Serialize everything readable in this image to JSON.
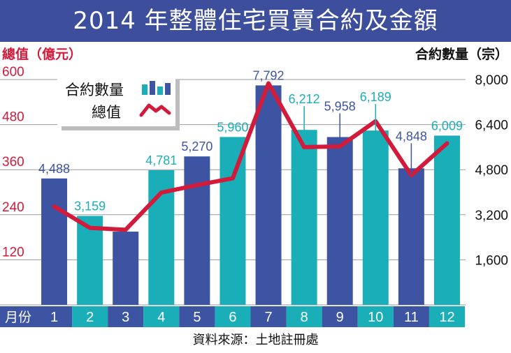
{
  "title": "2014 年整體住宅買賣合約及金額",
  "source": "資料來源：土地註冊處",
  "month_axis_label": "月份",
  "colors": {
    "title_bg": "#3d4f9c",
    "bar_dark": "#3d54a3",
    "bar_teal": "#1aaeb8",
    "line": "#d21a3a",
    "left_axis_text": "#d21a3a",
    "label_dark": "#3d54a3",
    "label_teal": "#1aaeb8",
    "month_band_dark": "#3d54a3",
    "month_band_teal": "#1aaeb8"
  },
  "chart_data": {
    "type": "bar",
    "categories": [
      "1",
      "2",
      "3",
      "4",
      "5",
      "6",
      "7",
      "8",
      "9",
      "10",
      "11",
      "12"
    ],
    "series": [
      {
        "name": "合約數量",
        "type": "bar",
        "axis": "right",
        "values": [
          4488,
          3159,
          2600,
          4781,
          5270,
          5960,
          7792,
          6212,
          5958,
          6189,
          4848,
          6009
        ],
        "labels": [
          "4,488",
          "3,159",
          "",
          "4,781",
          "5,270",
          "5,960",
          "7,792",
          "6,212",
          "5,958",
          "6,189",
          "4,848",
          "6,009"
        ],
        "colors": [
          "dark",
          "teal",
          "dark",
          "teal",
          "dark",
          "teal",
          "dark",
          "teal",
          "dark",
          "teal",
          "dark",
          "teal"
        ]
      },
      {
        "name": "總值",
        "type": "line",
        "axis": "left",
        "values": [
          262,
          205,
          200,
          299,
          319,
          337,
          590,
          420,
          422,
          489,
          345,
          430
        ]
      }
    ],
    "y_left": {
      "label": "總值（億元）",
      "ticks": [
        "600",
        "480",
        "360",
        "240",
        "120"
      ],
      "range": [
        0,
        600
      ]
    },
    "y_right": {
      "label": "合約數量（宗）",
      "ticks": [
        "8,000",
        "6,400",
        "4,800",
        "3,200",
        "1,600"
      ],
      "range": [
        0,
        8000
      ]
    },
    "legend": {
      "position": "top-left",
      "items": [
        {
          "label": "合約數量",
          "kind": "bars"
        },
        {
          "label": "總值",
          "kind": "line"
        }
      ]
    },
    "grid": true
  }
}
